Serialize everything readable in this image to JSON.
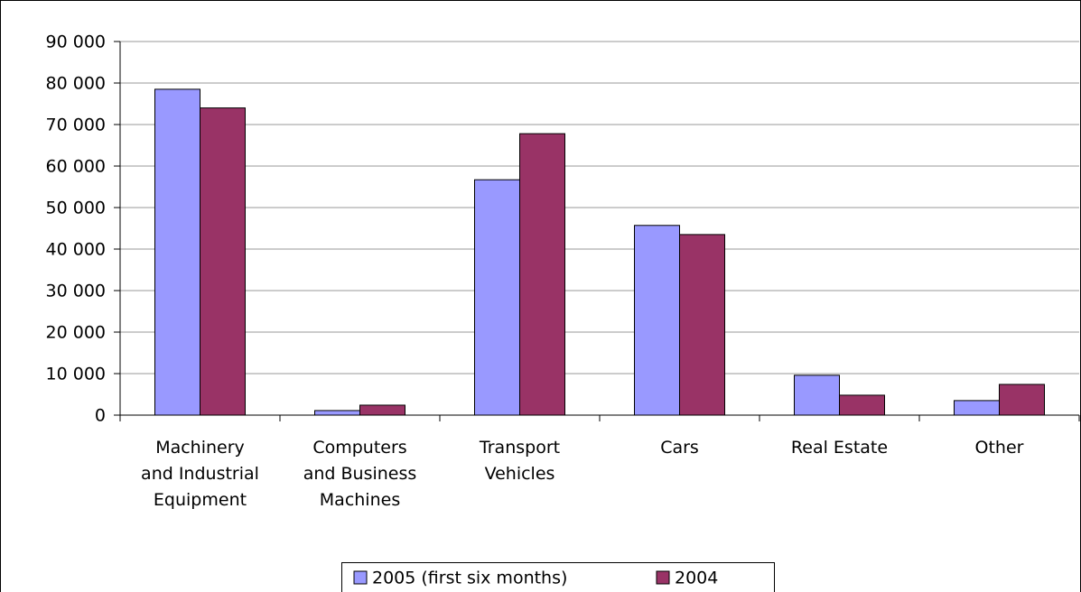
{
  "chart_data": {
    "type": "bar",
    "categories": [
      "Machinery and Industrial Equipment",
      "Computers and Business Machines",
      "Transport Vehicles",
      "Cars",
      "Real Estate",
      "Other"
    ],
    "series": [
      {
        "name": "2005 (first six months)",
        "color": "#9999ff",
        "values": [
          78500,
          1100,
          56700,
          45700,
          9600,
          3500
        ]
      },
      {
        "name": "2004",
        "color": "#993366",
        "values": [
          74000,
          2400,
          67800,
          43500,
          4800,
          7400
        ]
      }
    ],
    "ylim": [
      0,
      90000
    ],
    "yticks": [
      0,
      {
        "value": 10000,
        "label": "10 000"
      },
      {
        "value": 20000,
        "label": "20 000"
      },
      {
        "value": 30000,
        "label": "30 000"
      },
      {
        "value": 40000,
        "label": "40 000"
      },
      {
        "value": 50000,
        "label": "50 000"
      },
      {
        "value": 60000,
        "label": "60 000"
      },
      {
        "value": 70000,
        "label": "70 000"
      },
      {
        "value": 80000,
        "label": "80 000"
      },
      {
        "value": 90000,
        "label": "90 000"
      }
    ],
    "grid": true,
    "legend": "bottom"
  }
}
